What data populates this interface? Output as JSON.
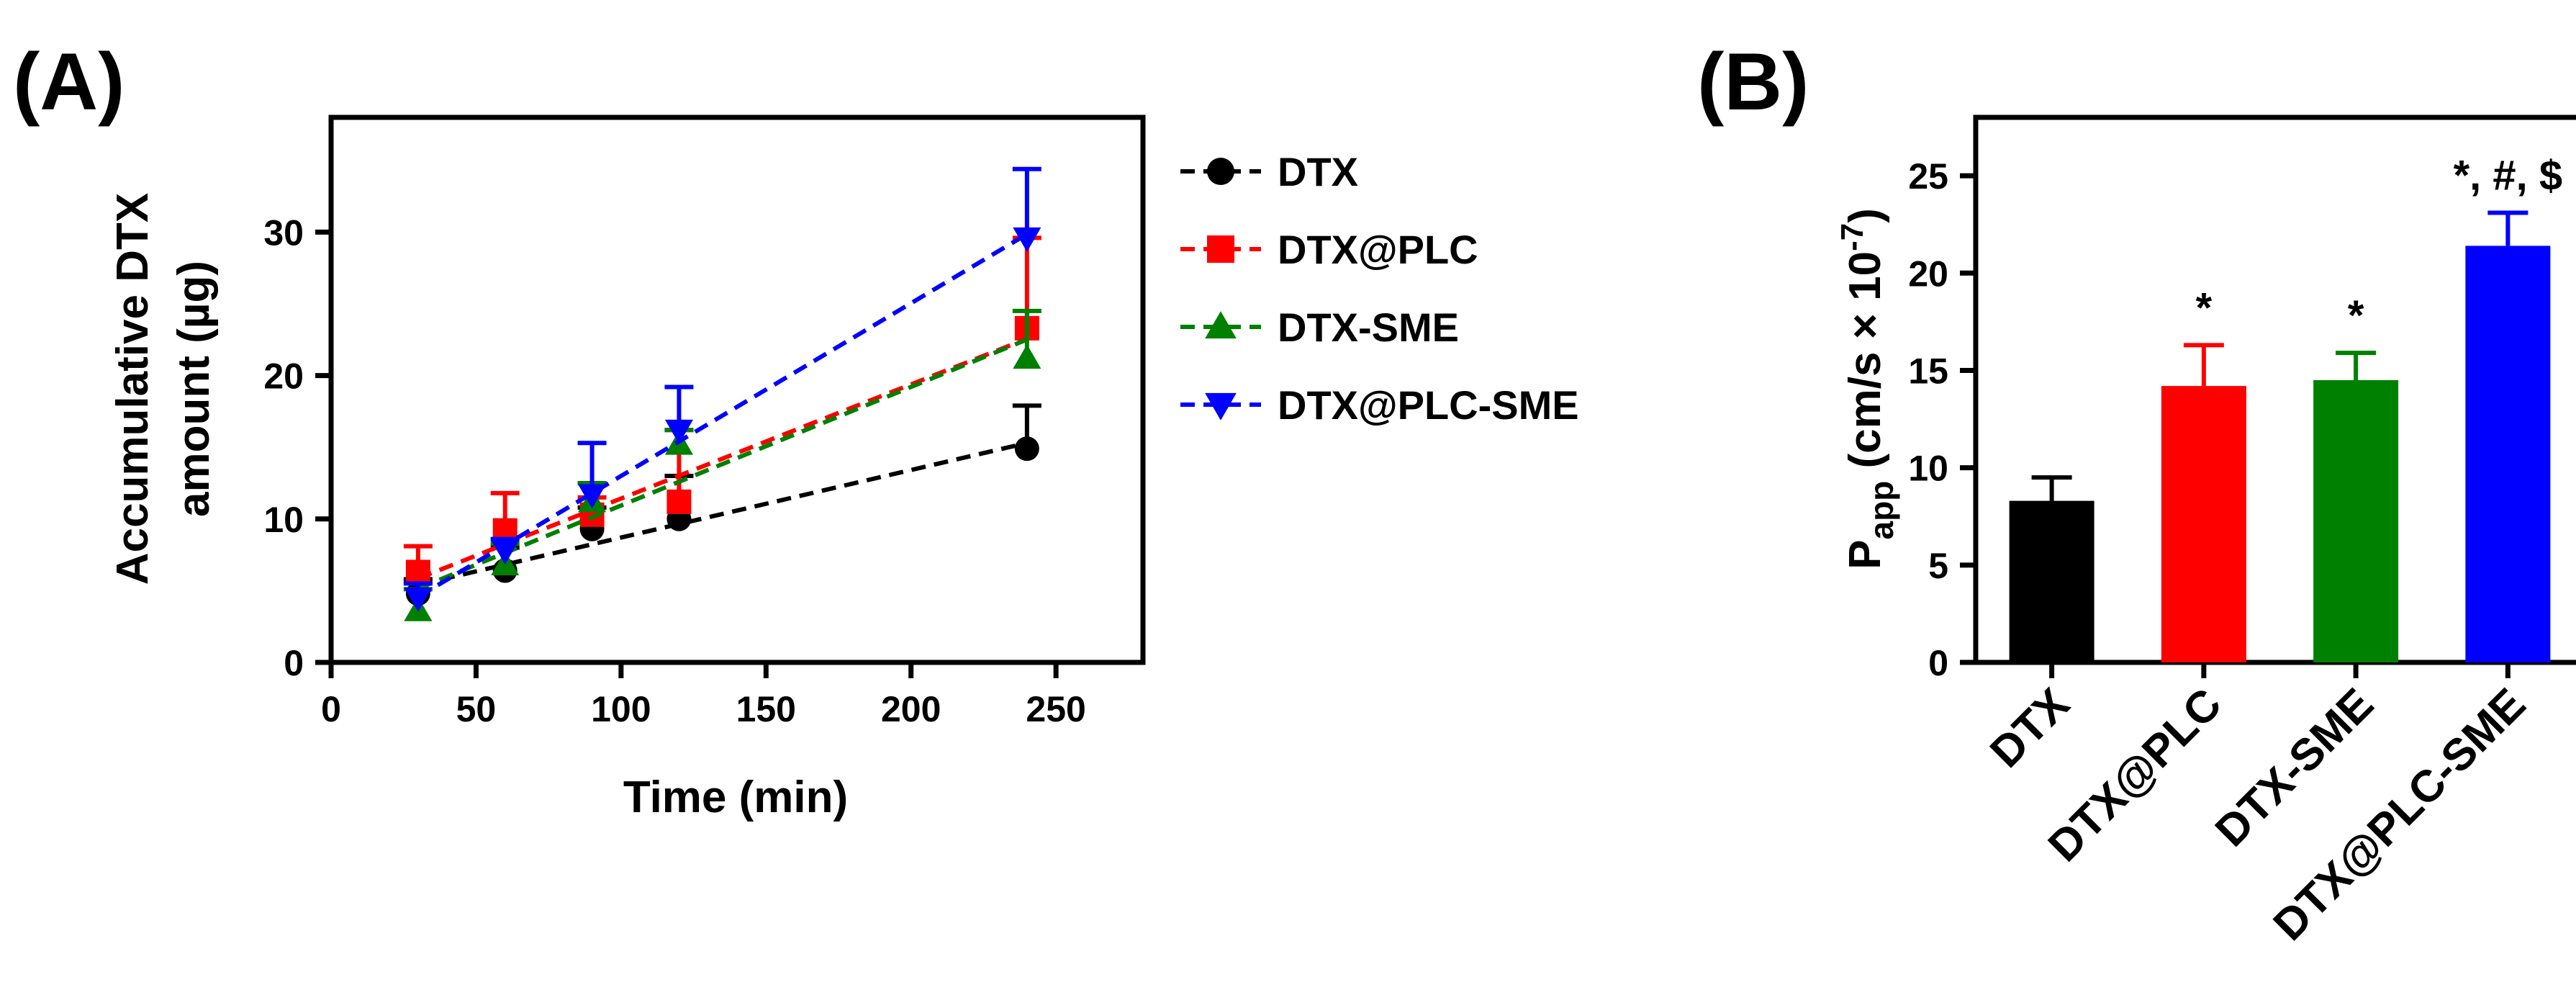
{
  "chart_data": [
    {
      "panel_label": "(A)",
      "type": "line",
      "xlabel": "Time (min)",
      "ylabel_line1": "Accumulative DTX",
      "ylabel_line2": "amount (µg)",
      "xlim": [
        0,
        280
      ],
      "ylim": [
        0,
        38
      ],
      "xticks": [
        0,
        50,
        100,
        150,
        200,
        250
      ],
      "yticks": [
        0,
        10,
        20,
        30
      ],
      "xtick_labels": [
        "0",
        "50",
        "100",
        "150",
        "200",
        "250"
      ],
      "ytick_labels": [
        "0",
        "10",
        "20",
        "30"
      ],
      "legend_position": "right",
      "series": [
        {
          "name": "DTX",
          "color": "#000000",
          "marker": "circle",
          "x": [
            30,
            60,
            90,
            120,
            240
          ],
          "y": [
            4.8,
            6.4,
            9.3,
            10.0,
            14.9
          ],
          "err": [
            1.0,
            1.6,
            1.5,
            3.0,
            3.0
          ]
        },
        {
          "name": "DTX@PLC",
          "color": "#ff0000",
          "marker": "square",
          "x": [
            30,
            60,
            90,
            120,
            240
          ],
          "y": [
            6.3,
            9.2,
            10.3,
            11.2,
            23.3
          ],
          "err": [
            1.8,
            2.6,
            1.2,
            5.0,
            6.3
          ]
        },
        {
          "name": "DTX-SME",
          "color": "#008000",
          "marker": "triangle-up",
          "x": [
            30,
            60,
            90,
            120,
            240
          ],
          "y": [
            3.6,
            6.8,
            11.2,
            15.2,
            21.2
          ],
          "err": [
            1.5,
            1.5,
            1.3,
            1.0,
            3.3
          ]
        },
        {
          "name": "DTX@PLC-SME",
          "color": "#0000ff",
          "marker": "triangle-down",
          "x": [
            30,
            60,
            90,
            120,
            240
          ],
          "y": [
            4.5,
            7.8,
            11.7,
            16.2,
            29.6
          ],
          "err": [
            1.0,
            0.8,
            3.6,
            3.0,
            4.8
          ]
        }
      ]
    },
    {
      "panel_label": "(B)",
      "type": "bar",
      "ylabel_main": "P",
      "ylabel_sub": "app",
      "ylabel_unit": " (cm/s × 10",
      "ylabel_exp": "-7",
      "ylabel_close": ")",
      "ylim": [
        0,
        28
      ],
      "yticks": [
        0,
        5,
        10,
        15,
        20,
        25
      ],
      "ytick_labels": [
        "0",
        "5",
        "10",
        "15",
        "20",
        "25"
      ],
      "categories": [
        "DTX",
        "DTX@PLC",
        "DTX-SME",
        "DTX@PLC-SME"
      ],
      "values": [
        8.3,
        14.2,
        14.5,
        21.4
      ],
      "errors": [
        1.2,
        2.1,
        1.4,
        1.7
      ],
      "colors": [
        "#000000",
        "#ff0000",
        "#008000",
        "#0000ff"
      ],
      "annotations": [
        "",
        "*",
        "*",
        "*, #, $"
      ]
    }
  ]
}
